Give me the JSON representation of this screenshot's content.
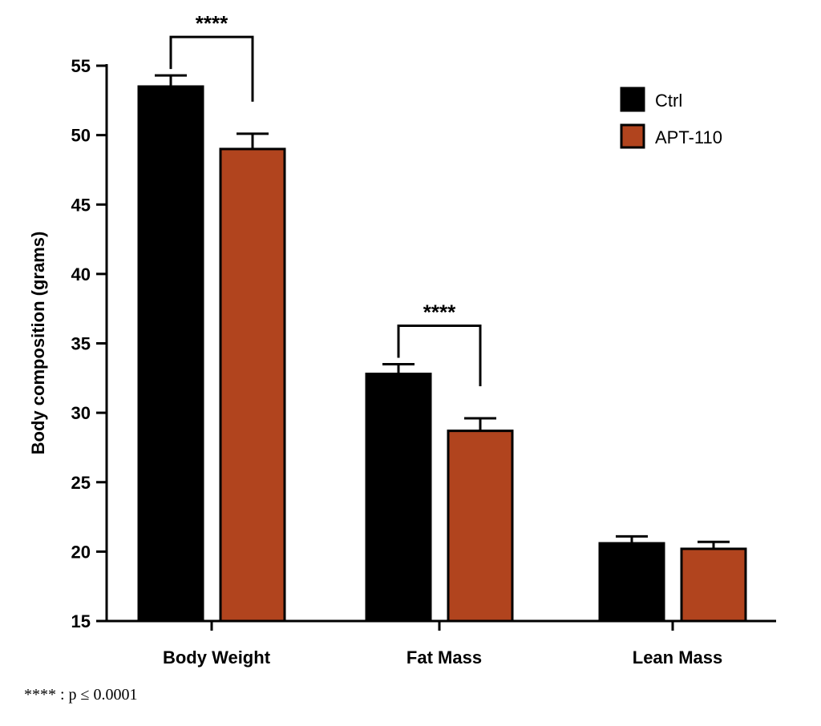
{
  "chart_data": {
    "type": "bar",
    "title": "",
    "xlabel": "",
    "ylabel": "Body composition (grams)",
    "ylim": [
      15,
      55
    ],
    "yticks": [
      15,
      20,
      25,
      30,
      35,
      40,
      45,
      50,
      55
    ],
    "categories": [
      "Body Weight",
      "Fat Mass",
      "Lean Mass"
    ],
    "series": [
      {
        "name": "Ctrl",
        "color": "#000000",
        "values": [
          53.5,
          32.8,
          20.6
        ],
        "errors": [
          0.8,
          0.7,
          0.5
        ]
      },
      {
        "name": "APT-110",
        "color": "#b1441e",
        "values": [
          49.0,
          28.7,
          20.2
        ],
        "errors": [
          1.1,
          0.9,
          0.5
        ]
      }
    ],
    "significance": [
      {
        "category_index": 0,
        "label": "****"
      },
      {
        "category_index": 1,
        "label": "****"
      }
    ],
    "legend_position": "top-right",
    "grid": false
  },
  "footnote": "**** : p ≤ 0.0001"
}
